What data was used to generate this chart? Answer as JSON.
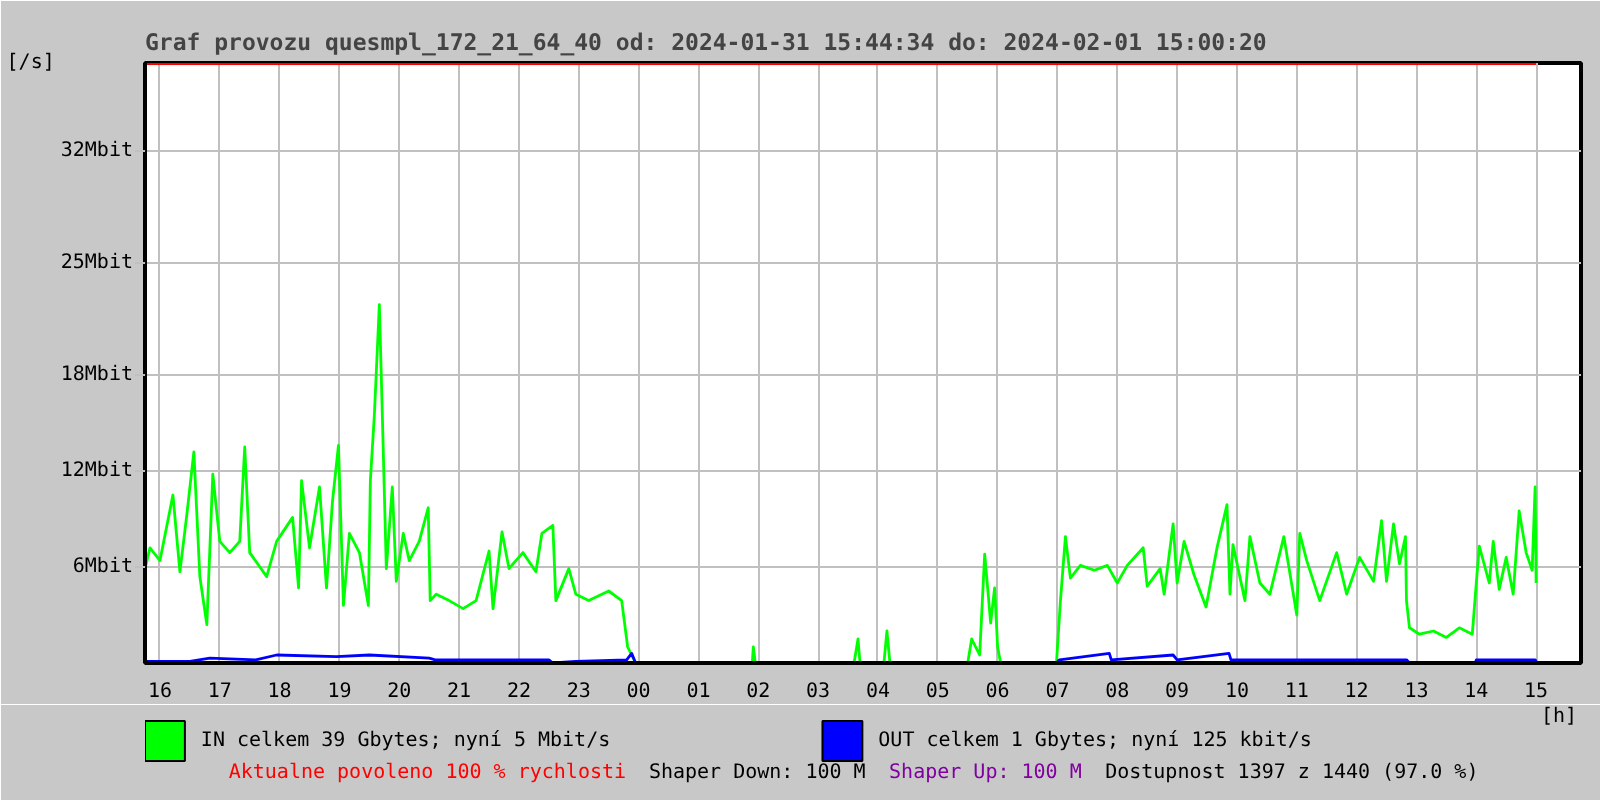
{
  "chart_data": {
    "type": "line",
    "title": "Graf provozu quesmpl_172_21_64_40 od: 2024-01-31 15:44:34 do: 2024-02-01 15:00:20",
    "xlabel": "[h]",
    "ylabel": "[/s]",
    "xlim": [
      "2024-01-31T15:45",
      "2024-02-01T15:45"
    ],
    "xticks": [
      {
        "value": "2024-01-31T16:00",
        "label": "16"
      },
      {
        "value": "2024-01-31T17:00",
        "label": "17"
      },
      {
        "value": "2024-01-31T18:00",
        "label": "18"
      },
      {
        "value": "2024-01-31T19:00",
        "label": "19"
      },
      {
        "value": "2024-01-31T20:00",
        "label": "20"
      },
      {
        "value": "2024-01-31T21:00",
        "label": "21"
      },
      {
        "value": "2024-01-31T22:00",
        "label": "22"
      },
      {
        "value": "2024-01-31T23:00",
        "label": "23"
      },
      {
        "value": "2024-02-01T00:00",
        "label": "00"
      },
      {
        "value": "2024-02-01T01:00",
        "label": "01"
      },
      {
        "value": "2024-02-01T02:00",
        "label": "02"
      },
      {
        "value": "2024-02-01T03:00",
        "label": "03"
      },
      {
        "value": "2024-02-01T04:00",
        "label": "04"
      },
      {
        "value": "2024-02-01T05:00",
        "label": "05"
      },
      {
        "value": "2024-02-01T06:00",
        "label": "06"
      },
      {
        "value": "2024-02-01T07:00",
        "label": "07"
      },
      {
        "value": "2024-02-01T08:00",
        "label": "08"
      },
      {
        "value": "2024-02-01T09:00",
        "label": "09"
      },
      {
        "value": "2024-02-01T10:00",
        "label": "10"
      },
      {
        "value": "2024-02-01T11:00",
        "label": "11"
      },
      {
        "value": "2024-02-01T12:00",
        "label": "12"
      },
      {
        "value": "2024-02-01T13:00",
        "label": "13"
      },
      {
        "value": "2024-02-01T14:00",
        "label": "14"
      },
      {
        "value": "2024-02-01T15:00",
        "label": "15"
      }
    ],
    "ylim": [
      0,
      37.5
    ],
    "yticks": [
      {
        "value": 6,
        "label": "6Mbit"
      },
      {
        "value": 12,
        "label": "12Mbit"
      },
      {
        "value": 18,
        "label": "18Mbit"
      },
      {
        "value": 25,
        "label": "25Mbit"
      },
      {
        "value": 32,
        "label": "32Mbit"
      }
    ],
    "grid": true,
    "legend": "bottom",
    "series": [
      {
        "name": "IN celkem 39 Gbytes; nyní 5 Mbit/s",
        "color": "#00ff00",
        "x": [
          "2024-01-31T15:45",
          "2024-01-31T15:50",
          "2024-01-31T16:00",
          "2024-01-31T16:13",
          "2024-01-31T16:20",
          "2024-01-31T16:27",
          "2024-01-31T16:34",
          "2024-01-31T16:40",
          "2024-01-31T16:47",
          "2024-01-31T16:53",
          "2024-01-31T17:00",
          "2024-01-31T17:10",
          "2024-01-31T17:20",
          "2024-01-31T17:25",
          "2024-01-31T17:30",
          "2024-01-31T17:47",
          "2024-01-31T17:57",
          "2024-01-31T18:13",
          "2024-01-31T18:19",
          "2024-01-31T18:22",
          "2024-01-31T18:30",
          "2024-01-31T18:40",
          "2024-01-31T18:47",
          "2024-01-31T18:53",
          "2024-01-31T18:59",
          "2024-01-31T19:04",
          "2024-01-31T19:10",
          "2024-01-31T19:20",
          "2024-01-31T19:29",
          "2024-01-31T19:31",
          "2024-01-31T19:35",
          "2024-01-31T19:40",
          "2024-01-31T19:43",
          "2024-01-31T19:47",
          "2024-01-31T19:53",
          "2024-01-31T19:57",
          "2024-01-31T20:04",
          "2024-01-31T20:10",
          "2024-01-31T20:20",
          "2024-01-31T20:29",
          "2024-01-31T20:31",
          "2024-01-31T20:37",
          "2024-01-31T20:50",
          "2024-01-31T21:04",
          "2024-01-31T21:17",
          "2024-01-31T21:30",
          "2024-01-31T21:34",
          "2024-01-31T21:43",
          "2024-01-31T21:50",
          "2024-01-31T22:04",
          "2024-01-31T22:17",
          "2024-01-31T22:23",
          "2024-01-31T22:34",
          "2024-01-31T22:37",
          "2024-01-31T22:50",
          "2024-01-31T22:57",
          "2024-01-31T23:10",
          "2024-01-31T23:30",
          "2024-01-31T23:43",
          "2024-01-31T23:49",
          "2024-01-31T23:53",
          "2024-01-31T23:57",
          "2024-02-01T00:00",
          "2024-02-01T01:54",
          "2024-02-01T01:55",
          "2024-02-01T01:57",
          "2024-02-01T03:36",
          "2024-02-01T03:40",
          "2024-02-01T03:42",
          "2024-02-01T04:06",
          "2024-02-01T04:09",
          "2024-02-01T04:12",
          "2024-02-01T05:30",
          "2024-02-01T05:34",
          "2024-02-01T05:42",
          "2024-02-01T05:47",
          "2024-02-01T05:50",
          "2024-02-01T05:53",
          "2024-02-01T05:57",
          "2024-02-01T06:00",
          "2024-02-01T06:03",
          "2024-02-01T06:59",
          "2024-02-01T07:00",
          "2024-02-01T07:03",
          "2024-02-01T07:08",
          "2024-02-01T07:13",
          "2024-02-01T07:23",
          "2024-02-01T07:37",
          "2024-02-01T07:50",
          "2024-02-01T08:00",
          "2024-02-01T08:10",
          "2024-02-01T08:26",
          "2024-02-01T08:30",
          "2024-02-01T08:43",
          "2024-02-01T08:47",
          "2024-02-01T08:56",
          "2024-02-01T09:00",
          "2024-02-01T09:07",
          "2024-02-01T09:17",
          "2024-02-01T09:29",
          "2024-02-01T09:40",
          "2024-02-01T09:50",
          "2024-02-01T09:53",
          "2024-02-01T09:56",
          "2024-02-01T10:08",
          "2024-02-01T10:13",
          "2024-02-01T10:23",
          "2024-02-01T10:33",
          "2024-02-01T10:47",
          "2024-02-01T11:00",
          "2024-02-01T11:03",
          "2024-02-01T11:10",
          "2024-02-01T11:23",
          "2024-02-01T11:40",
          "2024-02-01T11:50",
          "2024-02-01T12:03",
          "2024-02-01T12:17",
          "2024-02-01T12:25",
          "2024-02-01T12:30",
          "2024-02-01T12:37",
          "2024-02-01T12:43",
          "2024-02-01T12:49",
          "2024-02-01T12:50",
          "2024-02-01T12:53",
          "2024-02-01T13:03",
          "2024-02-01T13:17",
          "2024-02-01T13:30",
          "2024-02-01T13:43",
          "2024-02-01T13:56",
          "2024-02-01T14:00",
          "2024-02-01T14:03",
          "2024-02-01T14:13",
          "2024-02-01T14:17",
          "2024-02-01T14:23",
          "2024-02-01T14:30",
          "2024-02-01T14:37",
          "2024-02-01T14:43",
          "2024-02-01T14:50",
          "2024-02-01T14:56",
          "2024-02-01T14:59",
          "2024-02-01T15:00"
        ],
        "values": [
          5.9,
          7.2,
          6.4,
          10.5,
          5.7,
          9.3,
          13.2,
          5.4,
          2.4,
          11.8,
          7.6,
          6.9,
          7.6,
          13.5,
          6.9,
          5.4,
          7.6,
          9.1,
          4.7,
          11.4,
          7.2,
          11.0,
          4.7,
          10.1,
          13.6,
          3.6,
          8.1,
          6.9,
          3.6,
          11.4,
          15.5,
          22.4,
          15.5,
          5.9,
          11.0,
          5.1,
          8.1,
          6.4,
          7.6,
          9.7,
          3.9,
          4.3,
          3.9,
          3.4,
          3.9,
          7.0,
          3.4,
          8.2,
          5.9,
          6.9,
          5.7,
          8.1,
          8.6,
          3.9,
          5.9,
          4.3,
          3.9,
          4.5,
          3.9,
          1.0,
          0.5,
          0,
          0,
          0,
          1.0,
          0,
          0,
          1.5,
          0,
          0,
          2.0,
          0,
          0,
          1.5,
          0.5,
          6.8,
          4.7,
          2.5,
          4.7,
          1.0,
          0,
          0,
          1.0,
          3.9,
          7.9,
          5.3,
          6.1,
          5.8,
          6.1,
          5.0,
          6.1,
          7.2,
          4.8,
          5.9,
          4.3,
          8.7,
          5.0,
          7.6,
          5.5,
          3.5,
          7.2,
          9.9,
          4.3,
          7.4,
          3.9,
          7.9,
          5.0,
          4.3,
          7.9,
          3.0,
          8.1,
          6.4,
          3.9,
          6.9,
          4.3,
          6.6,
          5.1,
          8.9,
          5.1,
          8.7,
          6.2,
          7.9,
          3.9,
          2.2,
          1.8,
          2.0,
          1.6,
          2.2,
          1.8,
          5.0,
          7.3,
          5.0,
          7.6,
          4.6,
          6.6,
          4.3,
          9.5,
          6.9,
          5.8,
          11.0,
          5.0
        ]
      },
      {
        "name": "OUT celkem 1 Gbytes; nyní 125 kbit/s",
        "color": "#0000ff",
        "x": [
          "2024-01-31T15:45",
          "2024-01-31T16:30",
          "2024-01-31T16:50",
          "2024-01-31T17:36",
          "2024-01-31T17:57",
          "2024-01-31T18:57",
          "2024-01-31T19:30",
          "2024-01-31T20:30",
          "2024-01-31T20:36",
          "2024-01-31T22:30",
          "2024-01-31T22:34",
          "2024-01-31T22:57",
          "2024-01-31T23:48",
          "2024-01-31T23:53",
          "2024-01-31T23:57",
          "2024-02-01T00:00",
          "2024-02-01T06:59",
          "2024-02-01T07:02",
          "2024-02-01T07:52",
          "2024-02-01T07:54",
          "2024-02-01T08:56",
          "2024-02-01T09:00",
          "2024-02-01T09:52",
          "2024-02-01T09:54",
          "2024-02-01T12:50",
          "2024-02-01T12:53",
          "2024-02-01T13:59",
          "2024-02-01T14:00",
          "2024-02-01T14:59",
          "2024-02-01T15:00"
        ],
        "values": [
          0.1,
          0.1,
          0.3,
          0.2,
          0.5,
          0.4,
          0.5,
          0.3,
          0.2,
          0.2,
          0,
          0.1,
          0.2,
          0.6,
          0,
          0,
          0,
          0.2,
          0.6,
          0.2,
          0.5,
          0.2,
          0.6,
          0.2,
          0.2,
          0,
          0,
          0.2,
          0.2,
          0.1
        ]
      }
    ],
    "ref_lines": [
      {
        "axis": "y",
        "value": 37.5,
        "color": "#ff0000"
      }
    ],
    "annotations": [
      "Aktualne povoleno 100 % rychlosti",
      "Shaper Down: 100 M",
      "Shaper Up: 100 M",
      "Dostupnost 1397 z 1440 (97.0 %)"
    ]
  }
}
